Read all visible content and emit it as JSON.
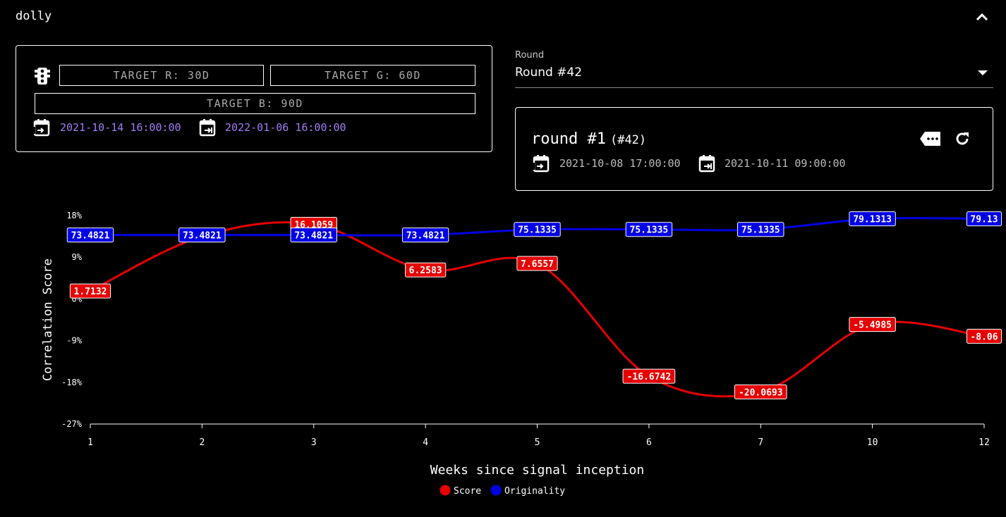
{
  "header": {
    "title": "dolly",
    "collapse_icon": "chevron-up-icon"
  },
  "targets": {
    "icon": "traffic-light-icon",
    "r": "TARGET R: 30D",
    "g": "TARGET G: 60D",
    "b": "TARGET B: 90D",
    "start_date": "2021-10-14 16:00:00",
    "end_date": "2022-01-06 16:00:00",
    "date_color": "#a47cf5"
  },
  "round_select": {
    "label": "Round",
    "value": "Round #42"
  },
  "round_card": {
    "name": "round #1",
    "number": "(#42)",
    "open_date": "2021-10-08 17:00:00",
    "close_date": "2021-10-11 09:00:00",
    "icons": [
      "label-icon",
      "refresh-icon"
    ]
  },
  "chart_data": {
    "type": "line",
    "xlabel": "Weeks since signal inception",
    "ylabel": "Correlation Score",
    "categories": [
      "1",
      "2",
      "3",
      "4",
      "5",
      "6",
      "7",
      "10",
      "12"
    ],
    "y_ticks": [
      "18%",
      "9%",
      "0%",
      "-9%",
      "-18%",
      "-27%"
    ],
    "ylim": [
      -27,
      18
    ],
    "grid": false,
    "legend_position": "bottom-center",
    "series": [
      {
        "name": "Score",
        "color": "#e60000",
        "values": [
          1.7132,
          13.5,
          16.1059,
          6.2583,
          7.6557,
          -16.6742,
          -20.0693,
          -5.4985,
          -8.06
        ],
        "labels": [
          "1.7132",
          "",
          "16.1059",
          "6.2583",
          "7.6557",
          "-16.6742",
          "-20.0693",
          "-5.4985",
          "-8.06"
        ]
      },
      {
        "name": "Originality",
        "color": "#0000e6",
        "values": [
          13.8,
          13.8,
          13.8,
          13.8,
          15.0,
          15.0,
          15.0,
          17.3,
          17.3
        ],
        "labels": [
          "73.4821",
          "73.4821",
          "73.4821",
          "73.4821",
          "75.1335",
          "75.1335",
          "75.1335",
          "79.1313",
          "79.13"
        ]
      }
    ]
  }
}
